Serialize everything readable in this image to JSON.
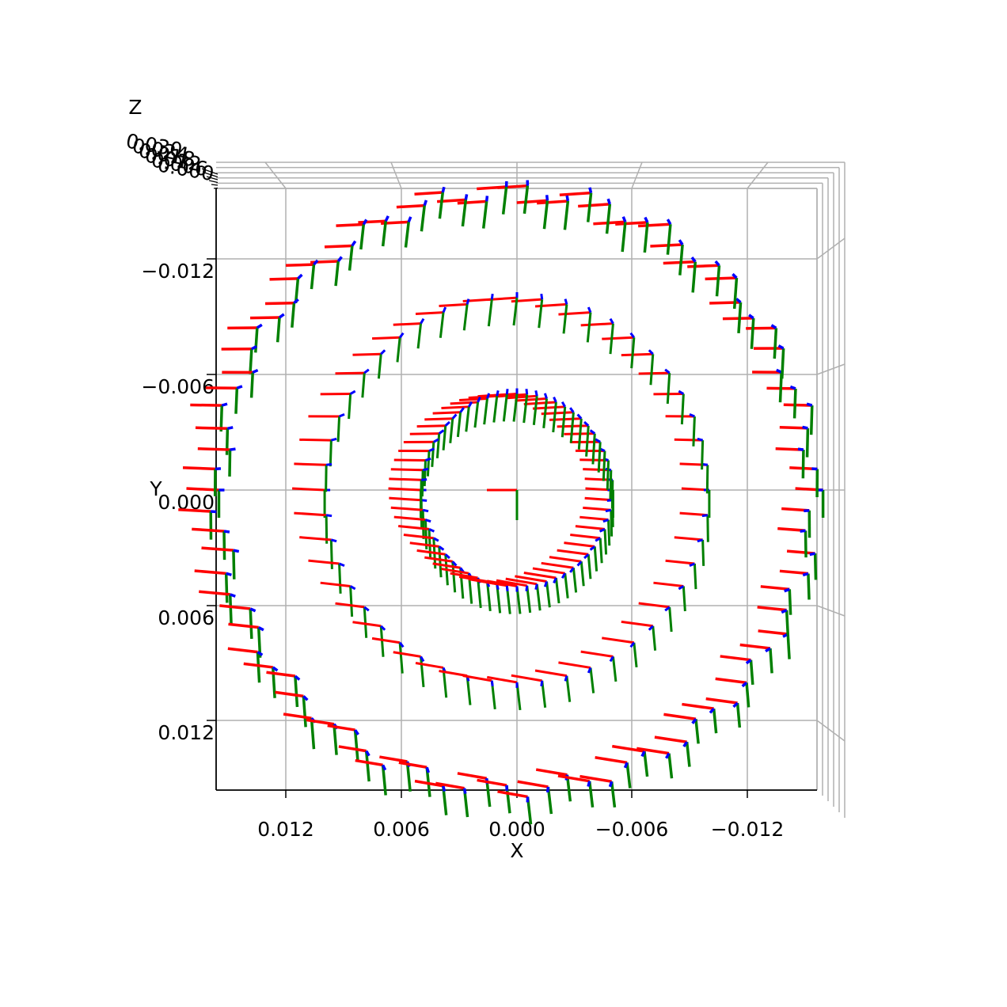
{
  "chart_data": {
    "type": "scatter",
    "projection": "3d",
    "view": "top-down (looking along Z)",
    "xlabel": "X",
    "ylabel": "Y",
    "zlabel": "Z",
    "x_ticks": [
      "0.012",
      "0.006",
      "0.000",
      "−0.006",
      "−0.012"
    ],
    "y_ticks": [
      "−0.012",
      "−0.006",
      "0.000",
      "0.006",
      "0.012"
    ],
    "z_ticks": [
      "0.030",
      "0.024",
      "0.018",
      "0.012",
      "0.006",
      "0.000"
    ],
    "xlim": [
      0.016,
      -0.016
    ],
    "ylim": [
      -0.0155,
      0.0155
    ],
    "zlim": [
      0.0,
      0.03
    ],
    "x_inverted": true,
    "grid": true,
    "rings": [
      {
        "name": "inner",
        "radius": 0.005,
        "frames": 60
      },
      {
        "name": "middle",
        "radius": 0.01,
        "frames": 48
      },
      {
        "name": "outer",
        "radius": 0.0155,
        "frames": 90
      }
    ],
    "frame_axes": [
      {
        "axis": "x",
        "color": "#ff0000"
      },
      {
        "axis": "y",
        "color": "#008000"
      },
      {
        "axis": "z",
        "color": "#0000ff"
      }
    ],
    "center_frame": {
      "x": 0.0,
      "y": 0.0
    }
  }
}
